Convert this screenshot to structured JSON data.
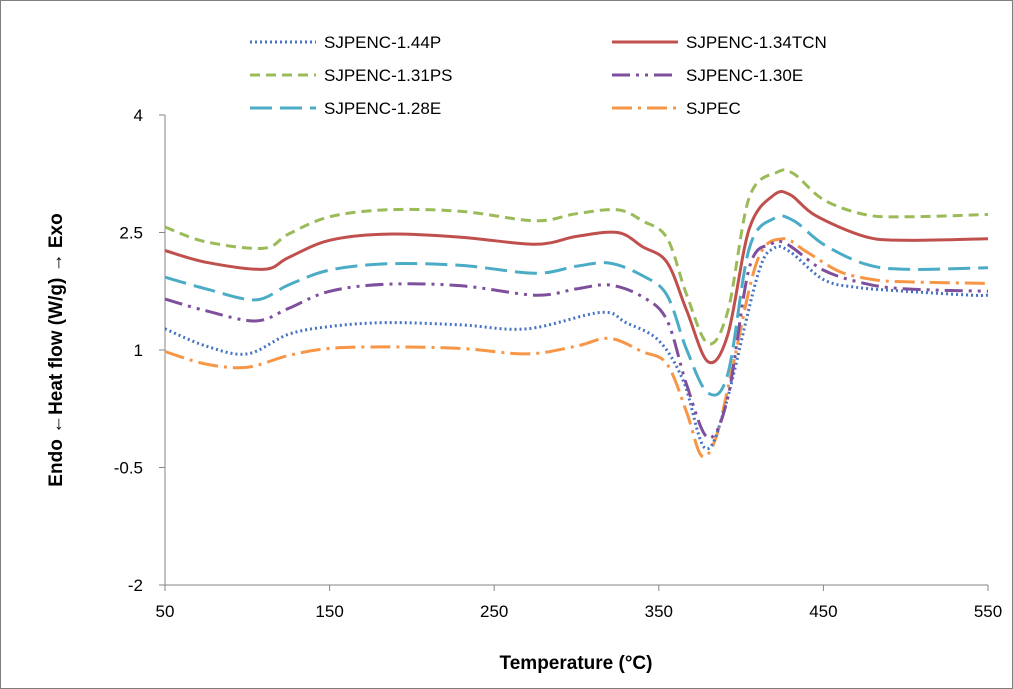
{
  "chart_data": {
    "type": "line",
    "xlabel": "Temperature (°C)",
    "ylabel": "Endo ←Heat flow (W/g) → Exo",
    "xlim": [
      50,
      550
    ],
    "ylim": [
      -2,
      4
    ],
    "xticks": [
      50,
      150,
      250,
      350,
      450,
      550
    ],
    "yticks": [
      {
        "value": -2,
        "label": "-2"
      },
      {
        "value": -0.5,
        "label": "-0.5"
      },
      {
        "value": 1,
        "label": "1"
      },
      {
        "value": 2.5,
        "label": "2.5"
      },
      {
        "value": 4,
        "label": "4"
      }
    ],
    "grid": false,
    "legend_position": "top",
    "series": [
      {
        "name": "SJPENC-1.44P",
        "color": "#4472c4",
        "dash": "2,3",
        "points": [
          [
            50,
            1.27
          ],
          [
            75,
            1.05
          ],
          [
            100,
            0.95
          ],
          [
            125,
            1.2
          ],
          [
            150,
            1.3
          ],
          [
            185,
            1.35
          ],
          [
            230,
            1.32
          ],
          [
            270,
            1.27
          ],
          [
            315,
            1.48
          ],
          [
            330,
            1.35
          ],
          [
            350,
            1.12
          ],
          [
            365,
            0.6
          ],
          [
            378,
            -0.25
          ],
          [
            390,
            0.25
          ],
          [
            410,
            1.95
          ],
          [
            420,
            2.3
          ],
          [
            430,
            2.25
          ],
          [
            450,
            1.9
          ],
          [
            470,
            1.8
          ],
          [
            500,
            1.75
          ],
          [
            540,
            1.7
          ],
          [
            550,
            1.7
          ]
        ]
      },
      {
        "name": "SJPENC-1.34TCN",
        "color": "#c0504d",
        "dash": "",
        "points": [
          [
            50,
            2.27
          ],
          [
            75,
            2.12
          ],
          [
            110,
            2.03
          ],
          [
            125,
            2.18
          ],
          [
            150,
            2.4
          ],
          [
            185,
            2.48
          ],
          [
            230,
            2.44
          ],
          [
            275,
            2.35
          ],
          [
            300,
            2.45
          ],
          [
            325,
            2.5
          ],
          [
            340,
            2.32
          ],
          [
            355,
            2.12
          ],
          [
            367,
            1.5
          ],
          [
            380,
            0.85
          ],
          [
            392,
            1.2
          ],
          [
            405,
            2.55
          ],
          [
            420,
            2.98
          ],
          [
            430,
            2.98
          ],
          [
            445,
            2.72
          ],
          [
            475,
            2.45
          ],
          [
            500,
            2.4
          ],
          [
            550,
            2.42
          ]
        ]
      },
      {
        "name": "SJPENC-1.31PS",
        "color": "#9bbb59",
        "dash": "10,6",
        "points": [
          [
            50,
            2.57
          ],
          [
            75,
            2.38
          ],
          [
            110,
            2.3
          ],
          [
            125,
            2.48
          ],
          [
            150,
            2.7
          ],
          [
            185,
            2.79
          ],
          [
            230,
            2.77
          ],
          [
            275,
            2.65
          ],
          [
            300,
            2.74
          ],
          [
            325,
            2.79
          ],
          [
            340,
            2.65
          ],
          [
            355,
            2.43
          ],
          [
            367,
            1.7
          ],
          [
            380,
            1.08
          ],
          [
            392,
            1.5
          ],
          [
            405,
            2.95
          ],
          [
            422,
            3.27
          ],
          [
            432,
            3.25
          ],
          [
            450,
            2.92
          ],
          [
            475,
            2.73
          ],
          [
            500,
            2.7
          ],
          [
            550,
            2.73
          ]
        ]
      },
      {
        "name": "SJPENC-1.30E",
        "color": "#7e4f9c",
        "dash": "18,6,3,6,3,6",
        "points": [
          [
            50,
            1.65
          ],
          [
            75,
            1.5
          ],
          [
            105,
            1.37
          ],
          [
            125,
            1.53
          ],
          [
            150,
            1.75
          ],
          [
            185,
            1.84
          ],
          [
            230,
            1.82
          ],
          [
            275,
            1.7
          ],
          [
            300,
            1.78
          ],
          [
            320,
            1.83
          ],
          [
            340,
            1.68
          ],
          [
            355,
            1.38
          ],
          [
            367,
            0.55
          ],
          [
            380,
            -0.12
          ],
          [
            392,
            0.4
          ],
          [
            405,
            2.05
          ],
          [
            418,
            2.35
          ],
          [
            428,
            2.35
          ],
          [
            450,
            2.02
          ],
          [
            475,
            1.85
          ],
          [
            500,
            1.78
          ],
          [
            550,
            1.75
          ]
        ]
      },
      {
        "name": "SJPENC-1.28E",
        "color": "#4bacc6",
        "dash": "22,8",
        "points": [
          [
            50,
            1.93
          ],
          [
            75,
            1.78
          ],
          [
            105,
            1.64
          ],
          [
            125,
            1.83
          ],
          [
            150,
            2.02
          ],
          [
            185,
            2.1
          ],
          [
            230,
            2.08
          ],
          [
            275,
            1.98
          ],
          [
            300,
            2.07
          ],
          [
            320,
            2.11
          ],
          [
            340,
            1.95
          ],
          [
            355,
            1.7
          ],
          [
            367,
            1.0
          ],
          [
            380,
            0.45
          ],
          [
            392,
            0.7
          ],
          [
            405,
            2.3
          ],
          [
            420,
            2.68
          ],
          [
            432,
            2.65
          ],
          [
            450,
            2.35
          ],
          [
            475,
            2.1
          ],
          [
            500,
            2.03
          ],
          [
            550,
            2.05
          ]
        ]
      },
      {
        "name": "SJPEC",
        "color": "#f79646",
        "dash": "20,6,3,6",
        "points": [
          [
            50,
            0.98
          ],
          [
            75,
            0.82
          ],
          [
            100,
            0.78
          ],
          [
            125,
            0.93
          ],
          [
            150,
            1.02
          ],
          [
            185,
            1.04
          ],
          [
            230,
            1.02
          ],
          [
            270,
            0.95
          ],
          [
            300,
            1.05
          ],
          [
            320,
            1.15
          ],
          [
            340,
            0.98
          ],
          [
            355,
            0.82
          ],
          [
            367,
            0.2
          ],
          [
            376,
            -0.35
          ],
          [
            385,
            -0.1
          ],
          [
            395,
            0.8
          ],
          [
            410,
            2.15
          ],
          [
            425,
            2.42
          ],
          [
            440,
            2.25
          ],
          [
            460,
            2.0
          ],
          [
            480,
            1.9
          ],
          [
            500,
            1.87
          ],
          [
            550,
            1.85
          ]
        ]
      }
    ]
  }
}
